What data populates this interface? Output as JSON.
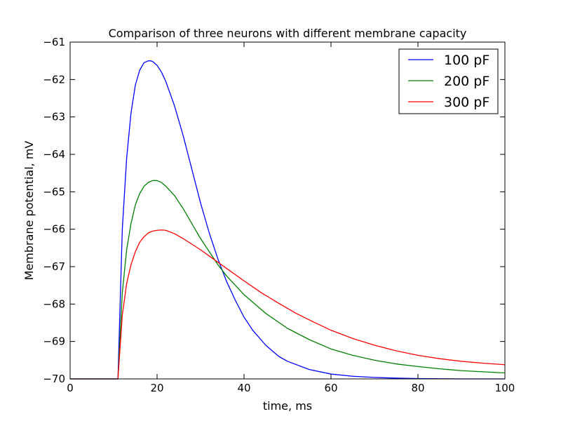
{
  "chart_data": {
    "type": "line",
    "title": "Comparison of three neurons with different membrane capacity",
    "xlabel": "time, ms",
    "ylabel": "Membrane potential, mV",
    "xlim": [
      0,
      100
    ],
    "ylim": [
      -70,
      -61
    ],
    "xticks": [
      0,
      20,
      40,
      60,
      80,
      100
    ],
    "yticks": [
      -70,
      -69,
      -68,
      -67,
      -66,
      -65,
      -64,
      -63,
      -62,
      -61
    ],
    "ytick_labels": [
      "−70",
      "−69",
      "−68",
      "−67",
      "−66",
      "−65",
      "−64",
      "−63",
      "−62",
      "−61"
    ],
    "grid": false,
    "legend_position": "top-right",
    "series": [
      {
        "name": "100 pF",
        "color": "#0000ff",
        "x": [
          0,
          10,
          11,
          12,
          13,
          14,
          15,
          16,
          17,
          18,
          18.5,
          19,
          20,
          21,
          22,
          24,
          26,
          28,
          30,
          32,
          34,
          36,
          38,
          40,
          42,
          45,
          48,
          50,
          55,
          60,
          65,
          70,
          75,
          80,
          85,
          90,
          95,
          100
        ],
        "y": [
          -70,
          -70,
          -70,
          -66.0,
          -64.1,
          -62.9,
          -62.15,
          -61.75,
          -61.55,
          -61.5,
          -61.5,
          -61.52,
          -61.62,
          -61.8,
          -62.05,
          -62.7,
          -63.5,
          -64.4,
          -65.3,
          -66.1,
          -66.8,
          -67.4,
          -67.9,
          -68.35,
          -68.7,
          -69.1,
          -69.4,
          -69.53,
          -69.75,
          -69.87,
          -69.93,
          -69.96,
          -69.98,
          -69.99,
          -69.995,
          -70,
          -70,
          -70
        ]
      },
      {
        "name": "200 pF",
        "color": "#008000",
        "x": [
          0,
          10,
          11,
          12,
          13,
          14,
          15,
          16,
          17,
          18,
          19,
          20,
          21,
          22,
          24,
          26,
          28,
          30,
          32,
          34,
          36,
          38,
          40,
          42,
          45,
          50,
          55,
          60,
          65,
          70,
          75,
          80,
          85,
          90,
          95,
          100
        ],
        "y": [
          -70,
          -70,
          -70,
          -67.7,
          -66.55,
          -65.85,
          -65.35,
          -65.05,
          -64.85,
          -64.75,
          -64.7,
          -64.7,
          -64.75,
          -64.85,
          -65.1,
          -65.45,
          -65.85,
          -66.25,
          -66.6,
          -66.95,
          -67.25,
          -67.5,
          -67.75,
          -67.95,
          -68.25,
          -68.65,
          -68.95,
          -69.2,
          -69.37,
          -69.5,
          -69.6,
          -69.67,
          -69.73,
          -69.78,
          -69.81,
          -69.84
        ]
      },
      {
        "name": "300 pF",
        "color": "#ff0000",
        "x": [
          0,
          10,
          11,
          12,
          13,
          14,
          15,
          16,
          17,
          18,
          19,
          20,
          21,
          22,
          24,
          26,
          28,
          30,
          33,
          36,
          40,
          44,
          48,
          52,
          56,
          60,
          65,
          70,
          75,
          80,
          85,
          90,
          95,
          100
        ],
        "y": [
          -70,
          -70,
          -70,
          -68.3,
          -67.45,
          -66.95,
          -66.6,
          -66.35,
          -66.2,
          -66.1,
          -66.05,
          -66.03,
          -66.02,
          -66.03,
          -66.12,
          -66.25,
          -66.4,
          -66.55,
          -66.8,
          -67.05,
          -67.38,
          -67.7,
          -67.98,
          -68.25,
          -68.48,
          -68.7,
          -68.92,
          -69.1,
          -69.25,
          -69.37,
          -69.46,
          -69.53,
          -69.58,
          -69.62
        ]
      }
    ]
  }
}
